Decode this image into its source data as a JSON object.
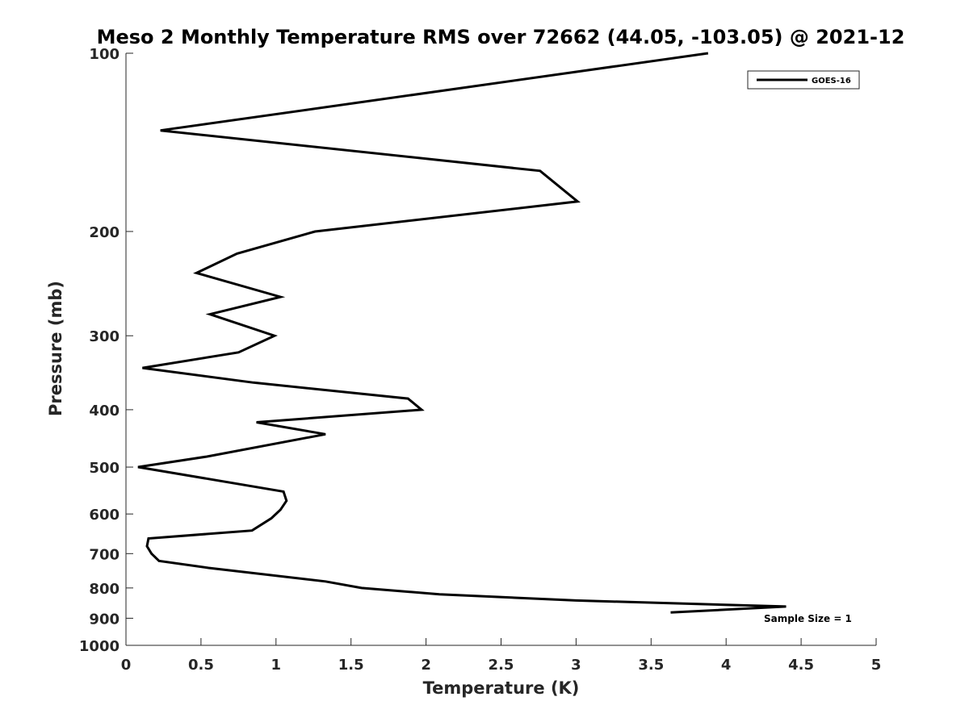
{
  "chart_data": {
    "type": "line",
    "title": "Meso 2 Monthly Temperature RMS over 72662 (44.05, -103.05) @ 2021-12",
    "xlabel": "Temperature (K)",
    "ylabel": "Pressure (mb)",
    "xlim": [
      0,
      5
    ],
    "ylim": [
      100,
      1000
    ],
    "y_scale": "log",
    "y_reversed": true,
    "grid": false,
    "legend_position": "top-right",
    "x_ticks": [
      "0",
      "0.5",
      "1",
      "1.5",
      "2",
      "2.5",
      "3",
      "3.5",
      "4",
      "4.5",
      "5"
    ],
    "y_ticks": [
      "100",
      "200",
      "300",
      "400",
      "500",
      "600",
      "700",
      "800",
      "900",
      "1000"
    ],
    "series": [
      {
        "name": "GOES-16",
        "color": "#000000",
        "points": [
          {
            "x": 3.88,
            "p": 100
          },
          {
            "x": 0.23,
            "p": 135
          },
          {
            "x": 2.76,
            "p": 158
          },
          {
            "x": 3.01,
            "p": 178
          },
          {
            "x": 1.26,
            "p": 200
          },
          {
            "x": 0.74,
            "p": 218
          },
          {
            "x": 0.47,
            "p": 235
          },
          {
            "x": 1.03,
            "p": 258
          },
          {
            "x": 0.56,
            "p": 276
          },
          {
            "x": 0.99,
            "p": 300
          },
          {
            "x": 0.75,
            "p": 320
          },
          {
            "x": 0.11,
            "p": 340
          },
          {
            "x": 0.85,
            "p": 360
          },
          {
            "x": 1.88,
            "p": 383
          },
          {
            "x": 1.97,
            "p": 400
          },
          {
            "x": 0.87,
            "p": 420
          },
          {
            "x": 1.33,
            "p": 440
          },
          {
            "x": 0.54,
            "p": 480
          },
          {
            "x": 0.08,
            "p": 500
          },
          {
            "x": 1.05,
            "p": 550
          },
          {
            "x": 1.07,
            "p": 570
          },
          {
            "x": 1.03,
            "p": 590
          },
          {
            "x": 0.97,
            "p": 610
          },
          {
            "x": 0.84,
            "p": 640
          },
          {
            "x": 0.15,
            "p": 660
          },
          {
            "x": 0.14,
            "p": 680
          },
          {
            "x": 0.17,
            "p": 700
          },
          {
            "x": 0.22,
            "p": 720
          },
          {
            "x": 0.55,
            "p": 740
          },
          {
            "x": 1.33,
            "p": 780
          },
          {
            "x": 1.57,
            "p": 800
          },
          {
            "x": 2.09,
            "p": 820
          },
          {
            "x": 3.0,
            "p": 840
          },
          {
            "x": 4.4,
            "p": 860
          },
          {
            "x": 3.63,
            "p": 880
          }
        ]
      }
    ],
    "annotations": [
      {
        "text": "Sample Size = 1"
      }
    ]
  }
}
